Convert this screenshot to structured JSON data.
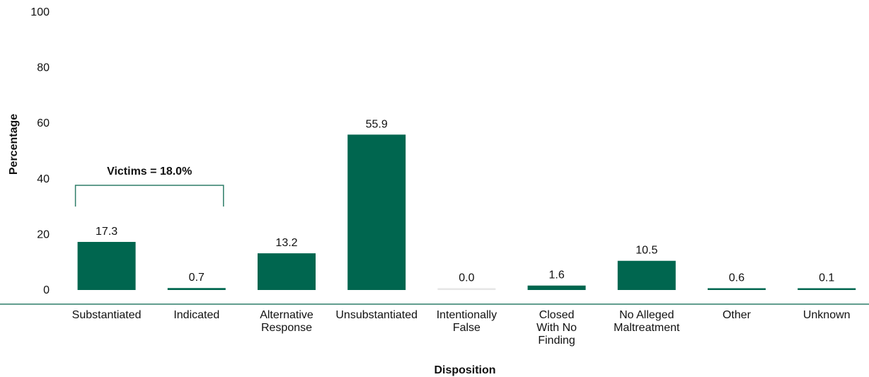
{
  "chart_data": {
    "type": "bar",
    "categories": [
      [
        "Substantiated"
      ],
      [
        "Indicated"
      ],
      [
        "Alternative",
        "Response"
      ],
      [
        "Unsubstantiated"
      ],
      [
        "Intentionally",
        "False"
      ],
      [
        "Closed",
        "With No",
        "Finding"
      ],
      [
        "No Alleged",
        "Maltreatment"
      ],
      [
        "Other"
      ],
      [
        "Unknown"
      ]
    ],
    "values": [
      17.3,
      0.7,
      13.2,
      55.9,
      0.0,
      1.6,
      10.5,
      0.6,
      0.1
    ],
    "value_labels": [
      "17.3",
      "0.7",
      "13.2",
      "55.9",
      "0.0",
      "1.6",
      "10.5",
      "0.6",
      "0.1"
    ],
    "xlabel": "Disposition",
    "ylabel": "Percentage",
    "ylim": [
      0,
      100
    ],
    "yticks": [
      "0",
      "20",
      "40",
      "60",
      "80",
      "100"
    ],
    "annotation": {
      "text": "Victims = 18.0%",
      "spans_categories": [
        0,
        1
      ]
    },
    "colors": {
      "bar": "#00664f",
      "zero_bar": "#e6e6e6",
      "axis": "#2e7d68",
      "bracket": "#2e7d68"
    },
    "grid": false,
    "legend": "none"
  }
}
